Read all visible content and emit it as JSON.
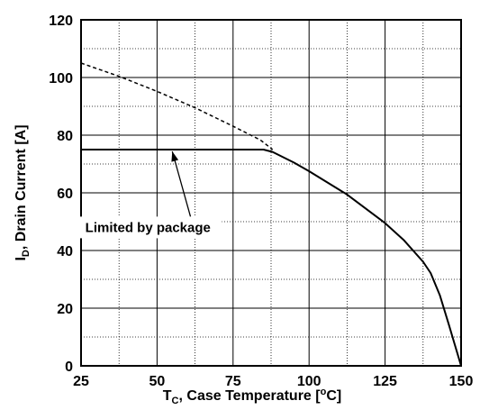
{
  "chart_data": {
    "type": "line",
    "xlim": [
      25,
      150
    ],
    "ylim": [
      0,
      120
    ],
    "x_ticks": [
      25,
      50,
      75,
      100,
      125,
      150
    ],
    "y_ticks": [
      0,
      20,
      40,
      60,
      80,
      100,
      120
    ],
    "x_minor_step": 12.5,
    "y_minor_step": 10,
    "grid": true,
    "xlabel": {
      "main": "T",
      "sub": "C",
      "rest_before_deg": ", Case Temperature [",
      "deg": "o",
      "rest_after_deg": "C]"
    },
    "ylabel": {
      "main": "I",
      "sub": "D",
      "rest": ", Drain Current [A]"
    },
    "annotation": {
      "text": "Limited by package",
      "arrow_to": {
        "x": 55,
        "y": 75
      }
    },
    "series": [
      {
        "style": "dashed",
        "x": [
          25,
          37.5,
          50,
          62.5,
          75,
          84,
          88
        ],
        "y": [
          105,
          100.4,
          95.2,
          89.5,
          83.1,
          78.3,
          75
        ]
      },
      {
        "style": "solid",
        "x": [
          25,
          50,
          75,
          85,
          88,
          95,
          100,
          112.5,
          125,
          131.25,
          137.5,
          140,
          143,
          146,
          150
        ],
        "y": [
          75,
          75,
          75,
          75,
          74.2,
          70.5,
          67.5,
          59.4,
          49.5,
          43.5,
          36.1,
          32.2,
          24.5,
          14.2,
          0
        ]
      }
    ]
  }
}
